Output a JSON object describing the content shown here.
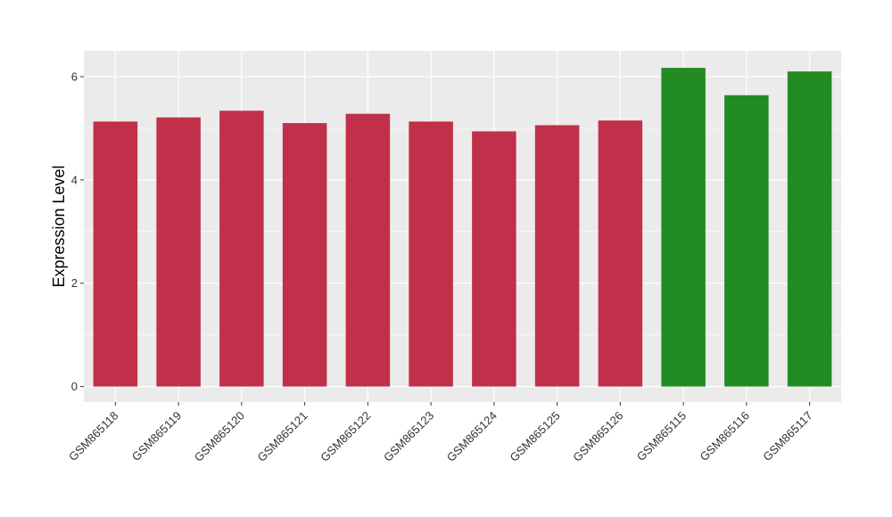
{
  "chart_data": {
    "type": "bar",
    "title": "",
    "xlabel": "",
    "ylabel": "Expression Level",
    "ylim": [
      -0.3,
      6.5
    ],
    "yticks": [
      0,
      2,
      4,
      6
    ],
    "grid": true,
    "legend": "none",
    "panel_background": "#ebebeb",
    "grid_color": "#ffffff",
    "categories": [
      "GSM865118",
      "GSM865119",
      "GSM865120",
      "GSM865121",
      "GSM865122",
      "GSM865123",
      "GSM865124",
      "GSM865125",
      "GSM865126",
      "GSM865115",
      "GSM865116",
      "GSM865117"
    ],
    "values": [
      5.13,
      5.21,
      5.34,
      5.1,
      5.28,
      5.13,
      4.94,
      5.06,
      5.15,
      6.17,
      5.64,
      6.1
    ],
    "colors": [
      "#c0304a",
      "#c0304a",
      "#c0304a",
      "#c0304a",
      "#c0304a",
      "#c0304a",
      "#c0304a",
      "#c0304a",
      "#c0304a",
      "#228b22",
      "#228b22",
      "#228b22"
    ]
  }
}
